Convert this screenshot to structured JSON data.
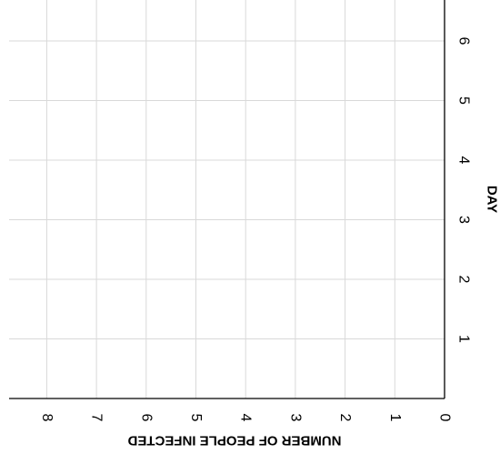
{
  "chart_data": {
    "type": "line",
    "title": "",
    "xlabel": "DAY",
    "ylabel": "NUMBER OF PEOPLE INFECTED",
    "x_ticks": [
      "1",
      "2",
      "3",
      "4",
      "5",
      "6"
    ],
    "y_ticks": [
      "0",
      "1",
      "2",
      "3",
      "4",
      "5",
      "6",
      "7",
      "8"
    ],
    "xlim": [
      0,
      7
    ],
    "ylim": [
      0,
      8.8
    ],
    "grid": true,
    "orientation": "rotated 90° clockwise",
    "series": [],
    "colors": {
      "grid": "#d9d9d9",
      "axis": "#000000"
    }
  }
}
